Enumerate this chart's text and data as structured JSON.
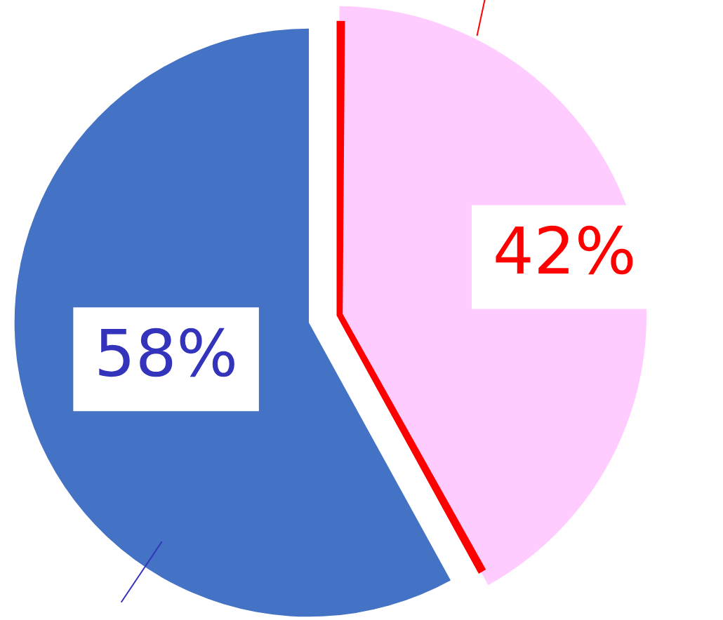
{
  "chart_data": {
    "type": "pie",
    "categories": [
      null,
      null
    ],
    "values": [
      42,
      58
    ],
    "colors": [
      "#ffccff",
      "#4472c4"
    ],
    "value_labels": [
      "42%",
      "58%"
    ],
    "legend": false
  }
}
